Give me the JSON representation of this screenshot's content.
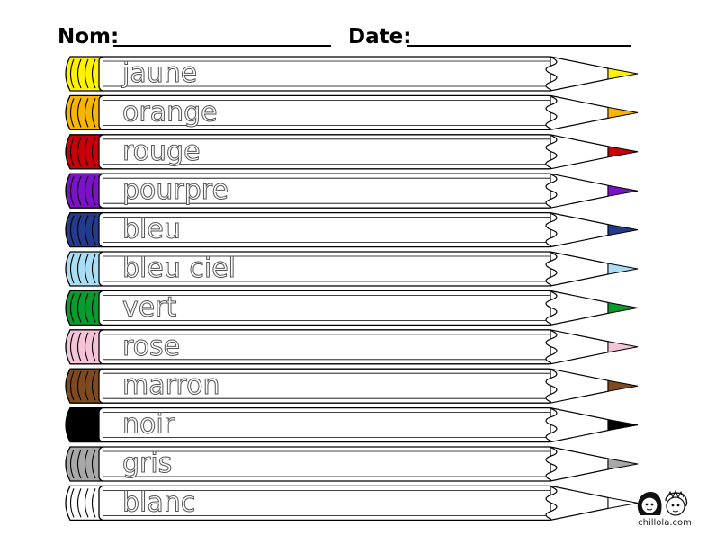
{
  "header": {
    "name_label": "Nom:",
    "date_label": "Date:"
  },
  "pencils": [
    {
      "word": "jaune",
      "color": "#FFF200"
    },
    {
      "word": "orange",
      "color": "#F7B500"
    },
    {
      "word": "rouge",
      "color": "#C8000A"
    },
    {
      "word": "pourpre",
      "color": "#7B12C8"
    },
    {
      "word": "bleu",
      "color": "#243A8C"
    },
    {
      "word": "bleu ciel",
      "color": "#A9DDF3"
    },
    {
      "word": "vert",
      "color": "#0A9A2E"
    },
    {
      "word": "rose",
      "color": "#F5C3D8"
    },
    {
      "word": "marron",
      "color": "#7E4A20"
    },
    {
      "word": "noir",
      "color": "#000000"
    },
    {
      "word": "gris",
      "color": "#A8A8A8"
    },
    {
      "word": "blanc",
      "color": "#FFFFFF"
    }
  ],
  "logo": {
    "text": "chillola.com",
    "icon": "two-kids-faces-icon"
  }
}
